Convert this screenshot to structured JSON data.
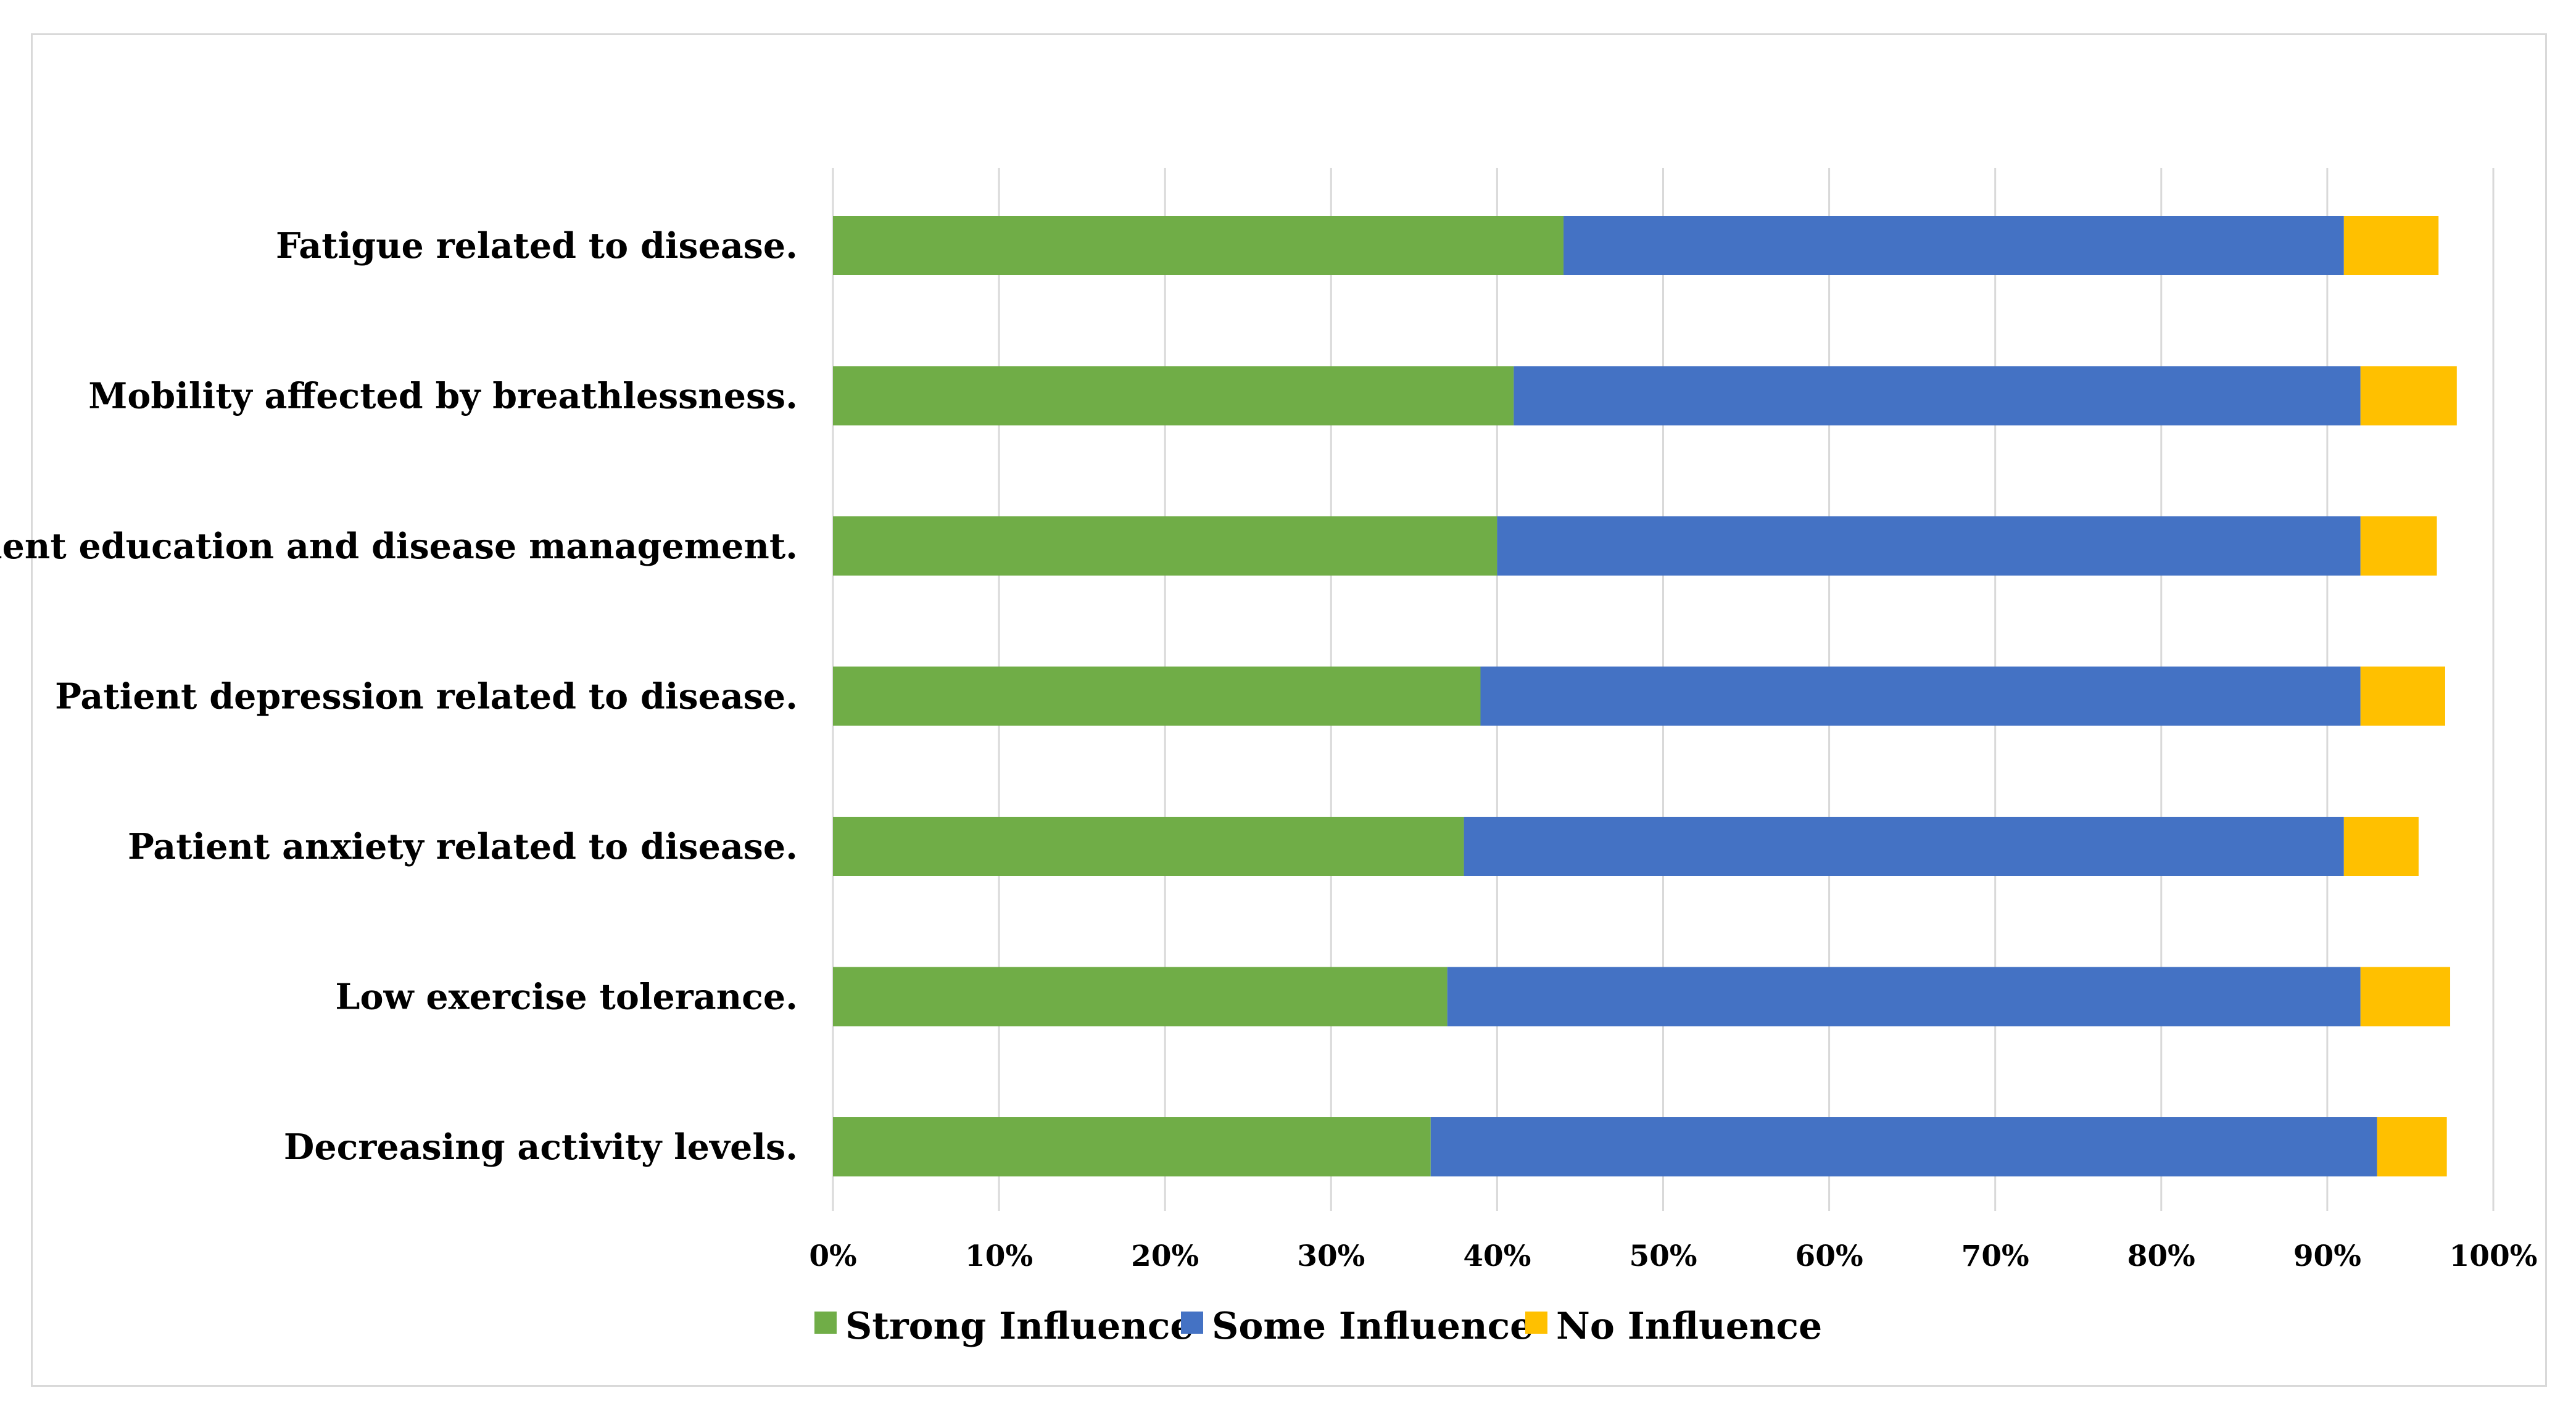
{
  "chart_data": {
    "type": "bar",
    "orientation": "horizontal",
    "stacked": true,
    "title": "",
    "xlabel": "",
    "ylabel": "",
    "xlim": [
      0,
      100
    ],
    "grid": true,
    "legend_position": "bottom",
    "categories": [
      "Fatigue related to disease.",
      "Mobility affected by breathlessness.",
      "Patient education and disease management.",
      "Patient depression related to disease.",
      "Patient anxiety related to disease.",
      "Low exercise tolerance.",
      "Decreasing activity levels."
    ],
    "x_ticks": [
      "0%",
      "10%",
      "20%",
      "30%",
      "40%",
      "50%",
      "60%",
      "70%",
      "80%",
      "90%",
      "100%"
    ],
    "series": [
      {
        "name": "Strong Influence",
        "color": "#70ad47",
        "values": [
          44,
          41,
          40,
          39,
          38,
          37,
          36
        ]
      },
      {
        "name": "Some Influence",
        "color": "#4472c4",
        "values": [
          47,
          51,
          52,
          53,
          53,
          55,
          57
        ]
      },
      {
        "name": "No Influence",
        "color": "#ffc000",
        "values": [
          5.7,
          5.8,
          4.6,
          5.1,
          4.5,
          5.4,
          4.2
        ]
      }
    ]
  }
}
